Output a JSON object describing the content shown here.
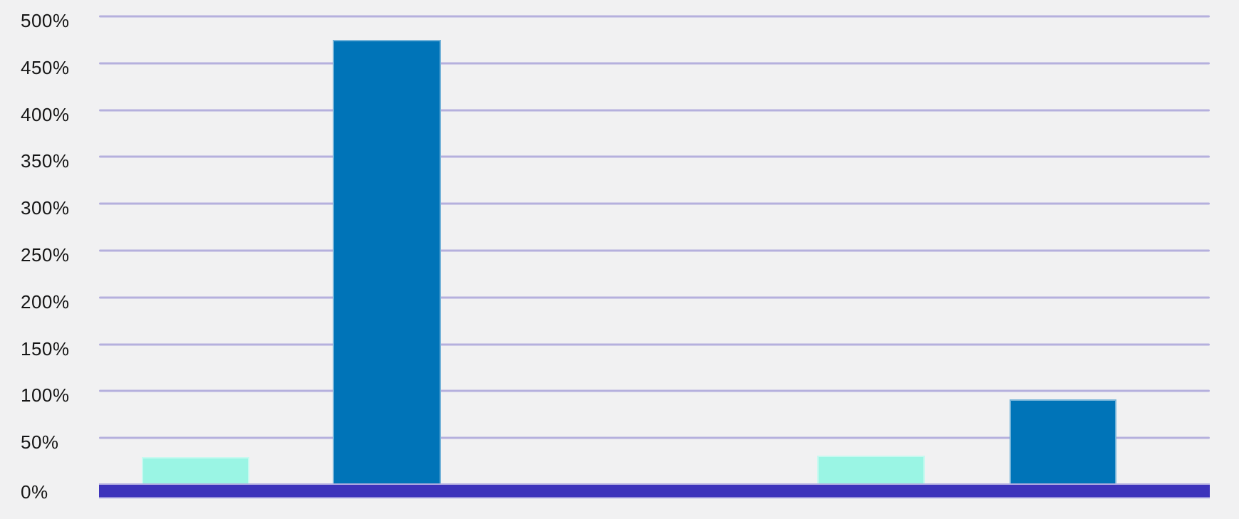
{
  "chart_data": {
    "type": "bar",
    "title": "",
    "xlabel": "",
    "ylabel": "",
    "ylim": [
      0,
      500
    ],
    "y_unit": "%",
    "grid": true,
    "legend": false,
    "x_axis_labels": [],
    "y_ticks": [
      {
        "value": 0,
        "label": "0%"
      },
      {
        "value": 50,
        "label": "50%"
      },
      {
        "value": 100,
        "label": "100%"
      },
      {
        "value": 150,
        "label": "150%"
      },
      {
        "value": 200,
        "label": "200%"
      },
      {
        "value": 250,
        "label": "250%"
      },
      {
        "value": 300,
        "label": "300%"
      },
      {
        "value": 350,
        "label": "350%"
      },
      {
        "value": 400,
        "label": "400%"
      },
      {
        "value": 450,
        "label": "450%"
      },
      {
        "value": 500,
        "label": "500%"
      }
    ],
    "series": [
      {
        "color": "#9af5e4",
        "values": [
          30,
          31
        ]
      },
      {
        "color": "#0074b8",
        "values": [
          475,
          91
        ]
      }
    ],
    "bars": [
      {
        "value": 30,
        "color": "#9af5e4",
        "x_frac": 0.0385,
        "width_frac": 0.0969
      },
      {
        "value": 475,
        "color": "#0074b8",
        "x_frac": 0.2105,
        "width_frac": 0.0976
      },
      {
        "value": 31,
        "color": "#9af5e4",
        "x_frac": 0.6463,
        "width_frac": 0.0969
      },
      {
        "value": 91,
        "color": "#0074b8",
        "x_frac": 0.8196,
        "width_frac": 0.0963
      }
    ],
    "colors": {
      "background": "#f1f1f2",
      "gridline": "#b5b0dd",
      "axis_baseline": "#3d33bb",
      "tick_label": "#161616"
    }
  }
}
